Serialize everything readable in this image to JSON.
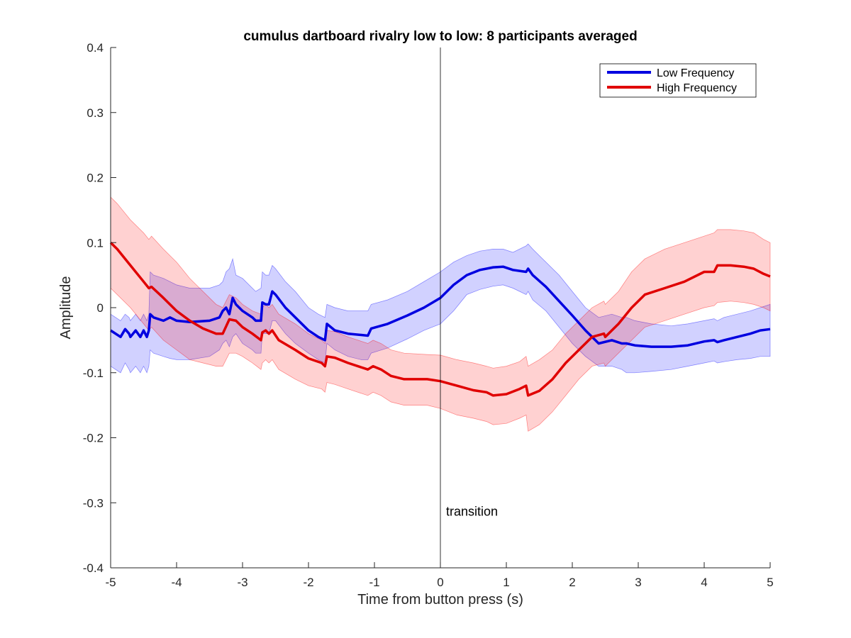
{
  "chart_data": {
    "type": "line",
    "title": "cumulus dartboard rivalry low to low: 8 participants averaged",
    "xlabel": "Time from button press (s)",
    "ylabel": "Amplitude",
    "xlim": [
      -5,
      5
    ],
    "ylim": [
      -0.4,
      0.4
    ],
    "xticks": [
      -5,
      -4,
      -3,
      -2,
      -1,
      0,
      1,
      2,
      3,
      4,
      5
    ],
    "yticks": [
      -0.4,
      -0.3,
      -0.2,
      -0.1,
      0,
      0.1,
      0.2,
      0.3,
      0.4
    ],
    "grid": false,
    "legend_position": "top-right",
    "annotation": {
      "text": "transition",
      "x": 0
    },
    "series": [
      {
        "name": "Low Frequency",
        "color": "#0000e0",
        "band_color": "#0000ff",
        "x": [
          -5,
          -4.85,
          -4.78,
          -4.72,
          -4.7,
          -4.62,
          -4.55,
          -4.5,
          -4.45,
          -4.42,
          -4.4,
          -4.35,
          -4.2,
          -4.1,
          -4,
          -3.8,
          -3.5,
          -3.35,
          -3.3,
          -3.25,
          -3.2,
          -3.15,
          -3.1,
          -3.0,
          -2.85,
          -2.8,
          -2.72,
          -2.7,
          -2.65,
          -2.6,
          -2.55,
          -2.5,
          -2.35,
          -2.2,
          -2.0,
          -1.85,
          -1.75,
          -1.72,
          -1.6,
          -1.4,
          -1.2,
          -1.1,
          -1.05,
          -0.8,
          -0.5,
          -0.25,
          0,
          0.2,
          0.4,
          0.6,
          0.8,
          0.95,
          1.1,
          1.3,
          1.33,
          1.4,
          1.6,
          1.8,
          2.0,
          2.2,
          2.4,
          2.6,
          2.75,
          2.82,
          2.95,
          3.2,
          3.5,
          3.75,
          4.0,
          4.15,
          4.2,
          4.3,
          4.5,
          4.7,
          4.85,
          5.0
        ],
        "y": [
          -0.035,
          -0.045,
          -0.033,
          -0.04,
          -0.045,
          -0.035,
          -0.045,
          -0.035,
          -0.045,
          -0.035,
          -0.01,
          -0.015,
          -0.02,
          -0.015,
          -0.02,
          -0.022,
          -0.02,
          -0.015,
          -0.005,
          0.0,
          -0.01,
          0.015,
          0.005,
          -0.005,
          -0.015,
          -0.02,
          -0.02,
          0.008,
          0.005,
          0.005,
          0.025,
          0.02,
          0.0,
          -0.015,
          -0.035,
          -0.045,
          -0.05,
          -0.025,
          -0.035,
          -0.04,
          -0.042,
          -0.043,
          -0.032,
          -0.025,
          -0.012,
          0.0,
          0.015,
          0.035,
          0.05,
          0.058,
          0.062,
          0.063,
          0.058,
          0.055,
          0.06,
          0.05,
          0.032,
          0.01,
          -0.012,
          -0.035,
          -0.055,
          -0.05,
          -0.055,
          -0.055,
          -0.058,
          -0.06,
          -0.06,
          -0.058,
          -0.052,
          -0.05,
          -0.053,
          -0.05,
          -0.045,
          -0.04,
          -0.035,
          -0.033
        ],
        "upper": [
          -0.01,
          -0.02,
          -0.01,
          -0.015,
          -0.02,
          -0.01,
          -0.02,
          -0.01,
          -0.02,
          -0.01,
          0.055,
          0.05,
          0.045,
          0.04,
          0.035,
          0.03,
          0.03,
          0.035,
          0.04,
          0.055,
          0.06,
          0.075,
          0.05,
          0.045,
          0.03,
          0.025,
          0.03,
          0.055,
          0.05,
          0.05,
          0.065,
          0.06,
          0.04,
          0.025,
          0.0,
          -0.01,
          -0.015,
          0.005,
          0.0,
          -0.005,
          -0.005,
          -0.005,
          0.005,
          0.012,
          0.025,
          0.04,
          0.055,
          0.07,
          0.08,
          0.087,
          0.09,
          0.09,
          0.085,
          0.095,
          0.098,
          0.09,
          0.07,
          0.05,
          0.025,
          0.0,
          -0.015,
          -0.01,
          -0.015,
          -0.015,
          -0.02,
          -0.025,
          -0.028,
          -0.025,
          -0.02,
          -0.017,
          -0.02,
          -0.015,
          -0.01,
          -0.005,
          0.0,
          0.005
        ],
        "lower": [
          -0.09,
          -0.1,
          -0.085,
          -0.095,
          -0.1,
          -0.09,
          -0.1,
          -0.09,
          -0.1,
          -0.09,
          -0.065,
          -0.07,
          -0.075,
          -0.078,
          -0.08,
          -0.08,
          -0.075,
          -0.065,
          -0.055,
          -0.05,
          -0.06,
          -0.045,
          -0.04,
          -0.055,
          -0.065,
          -0.07,
          -0.07,
          -0.04,
          -0.04,
          -0.04,
          -0.02,
          -0.02,
          -0.04,
          -0.055,
          -0.07,
          -0.08,
          -0.085,
          -0.055,
          -0.065,
          -0.075,
          -0.08,
          -0.08,
          -0.07,
          -0.062,
          -0.048,
          -0.035,
          -0.025,
          -0.005,
          0.02,
          0.028,
          0.033,
          0.035,
          0.03,
          0.02,
          0.025,
          0.012,
          -0.005,
          -0.03,
          -0.055,
          -0.075,
          -0.09,
          -0.09,
          -0.095,
          -0.1,
          -0.1,
          -0.098,
          -0.095,
          -0.09,
          -0.085,
          -0.082,
          -0.085,
          -0.083,
          -0.08,
          -0.078,
          -0.075,
          -0.075
        ]
      },
      {
        "name": "High Frequency",
        "color": "#e00000",
        "band_color": "#ff0000",
        "x": [
          -5,
          -4.9,
          -4.7,
          -4.5,
          -4.42,
          -4.38,
          -4.2,
          -4.0,
          -3.8,
          -3.6,
          -3.4,
          -3.3,
          -3.2,
          -3.1,
          -3.0,
          -2.85,
          -2.72,
          -2.7,
          -2.65,
          -2.6,
          -2.55,
          -2.45,
          -2.2,
          -2.0,
          -1.8,
          -1.75,
          -1.72,
          -1.6,
          -1.4,
          -1.1,
          -1.02,
          -0.9,
          -0.75,
          -0.55,
          -0.2,
          0,
          0.25,
          0.5,
          0.7,
          0.8,
          1.0,
          1.2,
          1.3,
          1.33,
          1.5,
          1.7,
          1.9,
          2.1,
          2.3,
          2.48,
          2.5,
          2.7,
          2.9,
          3.1,
          3.4,
          3.7,
          4.0,
          4.15,
          4.2,
          4.4,
          4.6,
          4.75,
          4.9,
          5.0
        ],
        "y": [
          0.1,
          0.09,
          0.065,
          0.04,
          0.03,
          0.032,
          0.015,
          -0.005,
          -0.02,
          -0.032,
          -0.04,
          -0.04,
          -0.018,
          -0.02,
          -0.03,
          -0.04,
          -0.05,
          -0.038,
          -0.035,
          -0.04,
          -0.035,
          -0.05,
          -0.065,
          -0.078,
          -0.085,
          -0.09,
          -0.075,
          -0.077,
          -0.085,
          -0.095,
          -0.09,
          -0.095,
          -0.105,
          -0.11,
          -0.11,
          -0.113,
          -0.12,
          -0.127,
          -0.13,
          -0.135,
          -0.133,
          -0.125,
          -0.12,
          -0.135,
          -0.128,
          -0.11,
          -0.085,
          -0.065,
          -0.045,
          -0.04,
          -0.045,
          -0.025,
          0.0,
          0.02,
          0.03,
          0.04,
          0.055,
          0.055,
          0.065,
          0.065,
          0.063,
          0.06,
          0.052,
          0.048
        ],
        "upper": [
          0.17,
          0.16,
          0.135,
          0.115,
          0.105,
          0.11,
          0.09,
          0.07,
          0.045,
          0.025,
          0.005,
          0.0,
          0.02,
          0.015,
          0.005,
          -0.005,
          -0.01,
          0.0,
          0.005,
          0.0,
          0.005,
          -0.01,
          -0.025,
          -0.04,
          -0.05,
          -0.055,
          -0.035,
          -0.037,
          -0.045,
          -0.055,
          -0.05,
          -0.055,
          -0.065,
          -0.07,
          -0.072,
          -0.073,
          -0.08,
          -0.085,
          -0.09,
          -0.093,
          -0.09,
          -0.083,
          -0.075,
          -0.09,
          -0.08,
          -0.065,
          -0.04,
          -0.02,
          0.0,
          0.01,
          0.005,
          0.025,
          0.055,
          0.075,
          0.09,
          0.1,
          0.11,
          0.115,
          0.12,
          0.12,
          0.118,
          0.115,
          0.105,
          0.1
        ],
        "lower": [
          0.03,
          0.02,
          0.0,
          -0.025,
          -0.035,
          -0.03,
          -0.05,
          -0.065,
          -0.08,
          -0.085,
          -0.09,
          -0.09,
          -0.07,
          -0.07,
          -0.075,
          -0.085,
          -0.095,
          -0.085,
          -0.08,
          -0.085,
          -0.08,
          -0.095,
          -0.11,
          -0.12,
          -0.125,
          -0.13,
          -0.115,
          -0.118,
          -0.125,
          -0.135,
          -0.13,
          -0.135,
          -0.145,
          -0.15,
          -0.15,
          -0.155,
          -0.165,
          -0.17,
          -0.175,
          -0.18,
          -0.178,
          -0.17,
          -0.165,
          -0.19,
          -0.18,
          -0.16,
          -0.135,
          -0.11,
          -0.09,
          -0.085,
          -0.09,
          -0.07,
          -0.05,
          -0.03,
          -0.02,
          -0.01,
          0.0,
          0.003,
          0.008,
          0.01,
          0.008,
          0.005,
          0.0,
          -0.005
        ]
      }
    ]
  }
}
